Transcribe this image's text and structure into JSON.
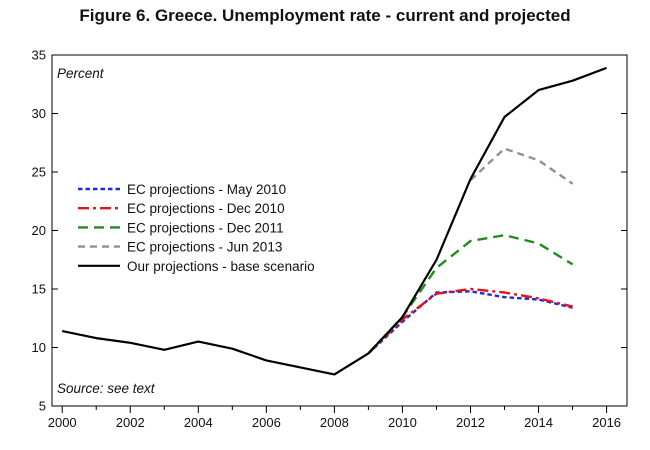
{
  "chart_data": {
    "type": "line",
    "title": "Figure 6. Greece. Unemployment rate - current and projected",
    "ylabel": "Percent",
    "source_note": "Source: see text",
    "xlim": [
      1999.7,
      2016.6
    ],
    "ylim": [
      5,
      35
    ],
    "x_ticks": [
      2000,
      2002,
      2004,
      2006,
      2008,
      2010,
      2012,
      2014,
      2016
    ],
    "y_ticks": [
      5,
      10,
      15,
      20,
      25,
      30,
      35
    ],
    "grid": false,
    "legend_position": "middle-left",
    "series": [
      {
        "name": "EC projections - May 2010",
        "color": "#1f2bd6",
        "dash": "short-dash",
        "x": [
          2009,
          2010,
          2011,
          2012,
          2013,
          2014,
          2015
        ],
        "y": [
          9.5,
          12.2,
          14.7,
          14.8,
          14.3,
          14.1,
          13.4
        ]
      },
      {
        "name": "EC projections - Dec 2010",
        "color": "#e3141c",
        "dash": "dash-dot",
        "x": [
          2009,
          2010,
          2011,
          2012,
          2013,
          2014,
          2015
        ],
        "y": [
          9.5,
          12.4,
          14.6,
          15.0,
          14.7,
          14.2,
          13.5
        ]
      },
      {
        "name": "EC projections - Dec 2011",
        "color": "#1e8c1e",
        "dash": "long-dash",
        "x": [
          2009,
          2010,
          2011,
          2012,
          2013,
          2014,
          2015
        ],
        "y": [
          9.5,
          12.6,
          16.8,
          19.1,
          19.6,
          18.9,
          17.1
        ]
      },
      {
        "name": "EC projections - Jun 2013",
        "color": "#909090",
        "dash": "dash",
        "x": [
          2012,
          2013,
          2014,
          2015
        ],
        "y": [
          24.3,
          27.0,
          26.0,
          24.0
        ]
      },
      {
        "name": "Our projections - base scenario",
        "color": "#000000",
        "dash": "solid",
        "x": [
          2000,
          2001,
          2002,
          2003,
          2004,
          2005,
          2006,
          2007,
          2008,
          2009,
          2010,
          2011,
          2012,
          2013,
          2014,
          2015,
          2016
        ],
        "y": [
          11.4,
          10.8,
          10.4,
          9.8,
          10.5,
          9.9,
          8.9,
          8.3,
          7.7,
          9.5,
          12.6,
          17.5,
          24.4,
          29.7,
          32.0,
          32.8,
          33.9
        ]
      }
    ]
  }
}
